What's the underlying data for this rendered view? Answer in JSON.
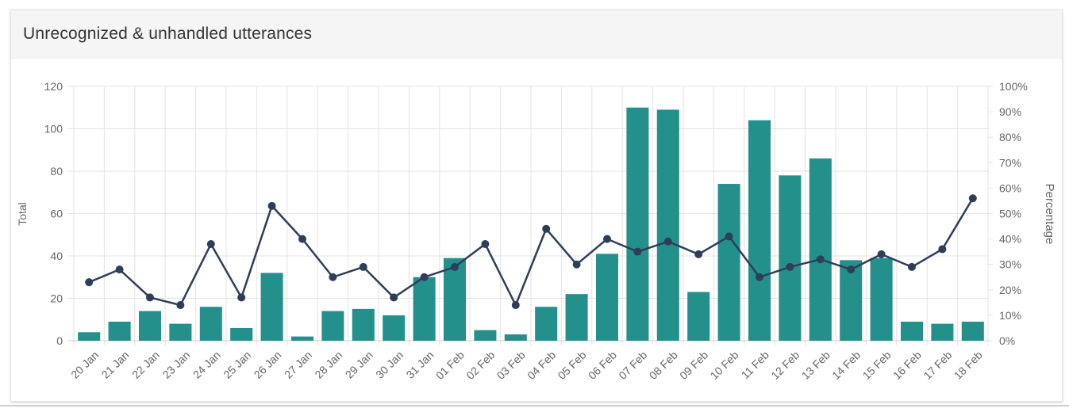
{
  "card": {
    "title": "Unrecognized & unhandled utterances"
  },
  "chart_data": {
    "type": "bar",
    "categories": [
      "20 Jan",
      "21 Jan",
      "22 Jan",
      "23 Jan",
      "24 Jan",
      "25 Jan",
      "26 Jan",
      "27 Jan",
      "28 Jan",
      "29 Jan",
      "30 Jan",
      "31 Jan",
      "01 Feb",
      "02 Feb",
      "03 Feb",
      "04 Feb",
      "05 Feb",
      "06 Feb",
      "07 Feb",
      "08 Feb",
      "09 Feb",
      "10 Feb",
      "11 Feb",
      "12 Feb",
      "13 Feb",
      "14 Feb",
      "15 Feb",
      "16 Feb",
      "17 Feb",
      "18 Feb"
    ],
    "series": [
      {
        "type": "bar",
        "axis": "left",
        "color": "#24908c",
        "values": [
          4,
          9,
          14,
          8,
          16,
          6,
          32,
          2,
          14,
          15,
          12,
          30,
          39,
          5,
          3,
          16,
          22,
          41,
          110,
          109,
          23,
          74,
          104,
          78,
          86,
          38,
          39,
          9,
          8,
          9
        ]
      },
      {
        "type": "line",
        "axis": "right",
        "color": "#2f3e58",
        "values": [
          23,
          28,
          17,
          14,
          38,
          17,
          53,
          40,
          25,
          29,
          17,
          25,
          29,
          38,
          14,
          44,
          30,
          40,
          35,
          39,
          34,
          41,
          25,
          29,
          32,
          28,
          34,
          29,
          36,
          56
        ]
      }
    ],
    "left_axis": {
      "label": "Total",
      "ylim": [
        0,
        120
      ],
      "ticks": [
        "0",
        "20",
        "40",
        "60",
        "80",
        "100",
        "120"
      ]
    },
    "right_axis": {
      "label": "Percentage",
      "ylim": [
        0,
        100
      ],
      "ticks": [
        "0%",
        "10%",
        "20%",
        "30%",
        "40%",
        "50%",
        "60%",
        "70%",
        "80%",
        "90%",
        "100%"
      ]
    },
    "grid": true
  }
}
